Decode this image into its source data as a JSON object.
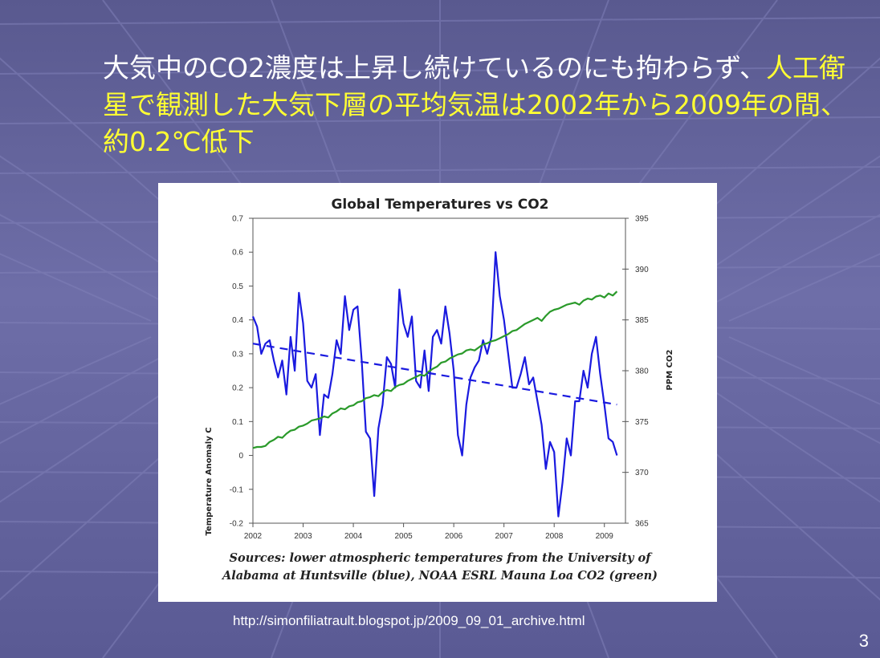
{
  "slide": {
    "title_part1": "大気中のCO2濃度は上昇し続けているのにも拘わらず、",
    "title_part2": "人工衛星で観測した大気下層の平均気温は2002年から2009年の間、約0.2℃低下",
    "source_url": "http://simonfiliatrault.blogspot.jp/2009_09_01_archive.html",
    "page_number": "3"
  },
  "colors": {
    "background": "#5f5f99",
    "highlight_text": "#ffff33",
    "temperature_series": "#1a1adf",
    "co2_series": "#2a9a2a",
    "trend_line": "#1a1adf"
  },
  "chart_data": {
    "type": "line",
    "title": "Global Temperatures vs CO2",
    "xlabel": "",
    "ylabel": "Temperature Anomaly C",
    "y2label": "PPM CO2",
    "xlim": [
      2002,
      2009.42
    ],
    "ylim": [
      -0.2,
      0.7
    ],
    "y2lim": [
      365,
      395
    ],
    "x_ticks": [
      "2002",
      "2003",
      "2004",
      "2005",
      "2006",
      "2007",
      "2008",
      "2009"
    ],
    "y_ticks": [
      "0.7",
      "0.6",
      "0.5",
      "0.4",
      "0.3",
      "0.2",
      "0.1",
      "0",
      "-0.1",
      "-0.2"
    ],
    "y2_ticks": [
      "395",
      "390",
      "385",
      "380",
      "375",
      "370",
      "365"
    ],
    "notes": [
      "Sources: lower atmospheric temperatures from the University of",
      "Alabama at Huntsville (blue), NOAA ESRL Mauna Loa CO2 (green)"
    ],
    "series": [
      {
        "axis": "left",
        "style": "solid",
        "points": [
          [
            2002.0,
            0.41
          ],
          [
            2002.083,
            0.38
          ],
          [
            2002.167,
            0.3
          ],
          [
            2002.25,
            0.33
          ],
          [
            2002.333,
            0.34
          ],
          [
            2002.417,
            0.28
          ],
          [
            2002.5,
            0.23
          ],
          [
            2002.583,
            0.28
          ],
          [
            2002.667,
            0.18
          ],
          [
            2002.75,
            0.35
          ],
          [
            2002.833,
            0.25
          ],
          [
            2002.917,
            0.48
          ],
          [
            2003.0,
            0.39
          ],
          [
            2003.083,
            0.22
          ],
          [
            2003.167,
            0.2
          ],
          [
            2003.25,
            0.24
          ],
          [
            2003.333,
            0.06
          ],
          [
            2003.417,
            0.18
          ],
          [
            2003.5,
            0.17
          ],
          [
            2003.583,
            0.24
          ],
          [
            2003.667,
            0.34
          ],
          [
            2003.75,
            0.3
          ],
          [
            2003.833,
            0.47
          ],
          [
            2003.917,
            0.37
          ],
          [
            2004.0,
            0.43
          ],
          [
            2004.083,
            0.44
          ],
          [
            2004.167,
            0.28
          ],
          [
            2004.25,
            0.07
          ],
          [
            2004.333,
            0.05
          ],
          [
            2004.417,
            -0.12
          ],
          [
            2004.5,
            0.08
          ],
          [
            2004.583,
            0.15
          ],
          [
            2004.667,
            0.29
          ],
          [
            2004.75,
            0.27
          ],
          [
            2004.833,
            0.2
          ],
          [
            2004.917,
            0.49
          ],
          [
            2005.0,
            0.39
          ],
          [
            2005.083,
            0.35
          ],
          [
            2005.167,
            0.41
          ],
          [
            2005.25,
            0.22
          ],
          [
            2005.333,
            0.2
          ],
          [
            2005.417,
            0.31
          ],
          [
            2005.5,
            0.19
          ],
          [
            2005.583,
            0.35
          ],
          [
            2005.667,
            0.37
          ],
          [
            2005.75,
            0.33
          ],
          [
            2005.833,
            0.44
          ],
          [
            2005.917,
            0.36
          ],
          [
            2006.0,
            0.25
          ],
          [
            2006.083,
            0.06
          ],
          [
            2006.167,
            0.0
          ],
          [
            2006.25,
            0.15
          ],
          [
            2006.333,
            0.23
          ],
          [
            2006.417,
            0.26
          ],
          [
            2006.5,
            0.28
          ],
          [
            2006.583,
            0.34
          ],
          [
            2006.667,
            0.3
          ],
          [
            2006.75,
            0.35
          ],
          [
            2006.833,
            0.6
          ],
          [
            2006.917,
            0.47
          ],
          [
            2007.0,
            0.4
          ],
          [
            2007.083,
            0.3
          ],
          [
            2007.167,
            0.2
          ],
          [
            2007.25,
            0.2
          ],
          [
            2007.333,
            0.24
          ],
          [
            2007.417,
            0.29
          ],
          [
            2007.5,
            0.21
          ],
          [
            2007.583,
            0.23
          ],
          [
            2007.667,
            0.16
          ],
          [
            2007.75,
            0.09
          ],
          [
            2007.833,
            -0.04
          ],
          [
            2007.917,
            0.04
          ],
          [
            2008.0,
            0.01
          ],
          [
            2008.083,
            -0.18
          ],
          [
            2008.167,
            -0.08
          ],
          [
            2008.25,
            0.05
          ],
          [
            2008.333,
            0.0
          ],
          [
            2008.417,
            0.16
          ],
          [
            2008.5,
            0.16
          ],
          [
            2008.583,
            0.25
          ],
          [
            2008.667,
            0.2
          ],
          [
            2008.75,
            0.3
          ],
          [
            2008.833,
            0.35
          ],
          [
            2008.917,
            0.24
          ],
          [
            2009.0,
            0.15
          ],
          [
            2009.083,
            0.05
          ],
          [
            2009.167,
            0.04
          ],
          [
            2009.25,
            0.0
          ]
        ]
      },
      {
        "axis": "right",
        "style": "solid",
        "points": [
          [
            2002.0,
            372.4
          ],
          [
            2002.083,
            372.5
          ],
          [
            2002.167,
            372.5
          ],
          [
            2002.25,
            372.6
          ],
          [
            2002.333,
            373.0
          ],
          [
            2002.417,
            373.2
          ],
          [
            2002.5,
            373.5
          ],
          [
            2002.583,
            373.4
          ],
          [
            2002.667,
            373.8
          ],
          [
            2002.75,
            374.1
          ],
          [
            2002.833,
            374.2
          ],
          [
            2002.917,
            374.5
          ],
          [
            2003.0,
            374.6
          ],
          [
            2003.083,
            374.8
          ],
          [
            2003.167,
            375.1
          ],
          [
            2003.25,
            375.2
          ],
          [
            2003.333,
            375.3
          ],
          [
            2003.417,
            375.5
          ],
          [
            2003.5,
            375.4
          ],
          [
            2003.583,
            375.8
          ],
          [
            2003.667,
            376.0
          ],
          [
            2003.75,
            376.3
          ],
          [
            2003.833,
            376.2
          ],
          [
            2003.917,
            376.5
          ],
          [
            2004.0,
            376.6
          ],
          [
            2004.083,
            376.9
          ],
          [
            2004.167,
            377.0
          ],
          [
            2004.25,
            377.3
          ],
          [
            2004.333,
            377.4
          ],
          [
            2004.417,
            377.6
          ],
          [
            2004.5,
            377.5
          ],
          [
            2004.583,
            377.9
          ],
          [
            2004.667,
            378.1
          ],
          [
            2004.75,
            378.0
          ],
          [
            2004.833,
            378.4
          ],
          [
            2004.917,
            378.6
          ],
          [
            2005.0,
            378.7
          ],
          [
            2005.083,
            379.0
          ],
          [
            2005.167,
            379.2
          ],
          [
            2005.25,
            379.4
          ],
          [
            2005.333,
            379.6
          ],
          [
            2005.417,
            379.5
          ],
          [
            2005.5,
            379.9
          ],
          [
            2005.583,
            380.2
          ],
          [
            2005.667,
            380.4
          ],
          [
            2005.75,
            380.8
          ],
          [
            2005.833,
            380.9
          ],
          [
            2005.917,
            381.2
          ],
          [
            2006.0,
            381.4
          ],
          [
            2006.083,
            381.6
          ],
          [
            2006.167,
            381.7
          ],
          [
            2006.25,
            382.0
          ],
          [
            2006.333,
            382.1
          ],
          [
            2006.417,
            382.0
          ],
          [
            2006.5,
            382.3
          ],
          [
            2006.583,
            382.6
          ],
          [
            2006.667,
            382.7
          ],
          [
            2006.75,
            382.9
          ],
          [
            2006.833,
            383.0
          ],
          [
            2006.917,
            383.2
          ],
          [
            2007.0,
            383.4
          ],
          [
            2007.083,
            383.6
          ],
          [
            2007.167,
            383.9
          ],
          [
            2007.25,
            384.0
          ],
          [
            2007.333,
            384.3
          ],
          [
            2007.417,
            384.6
          ],
          [
            2007.5,
            384.8
          ],
          [
            2007.583,
            385.0
          ],
          [
            2007.667,
            385.2
          ],
          [
            2007.75,
            384.9
          ],
          [
            2007.833,
            385.4
          ],
          [
            2007.917,
            385.8
          ],
          [
            2008.0,
            386.0
          ],
          [
            2008.083,
            386.1
          ],
          [
            2008.167,
            386.3
          ],
          [
            2008.25,
            386.5
          ],
          [
            2008.333,
            386.6
          ],
          [
            2008.417,
            386.7
          ],
          [
            2008.5,
            386.5
          ],
          [
            2008.583,
            386.9
          ],
          [
            2008.667,
            387.1
          ],
          [
            2008.75,
            387.0
          ],
          [
            2008.833,
            387.3
          ],
          [
            2008.917,
            387.4
          ],
          [
            2009.0,
            387.2
          ],
          [
            2009.083,
            387.6
          ],
          [
            2009.167,
            387.4
          ],
          [
            2009.25,
            387.8
          ]
        ]
      },
      {
        "axis": "left",
        "style": "dashed",
        "points": [
          [
            2002.0,
            0.33
          ],
          [
            2009.25,
            0.15
          ]
        ]
      }
    ]
  }
}
